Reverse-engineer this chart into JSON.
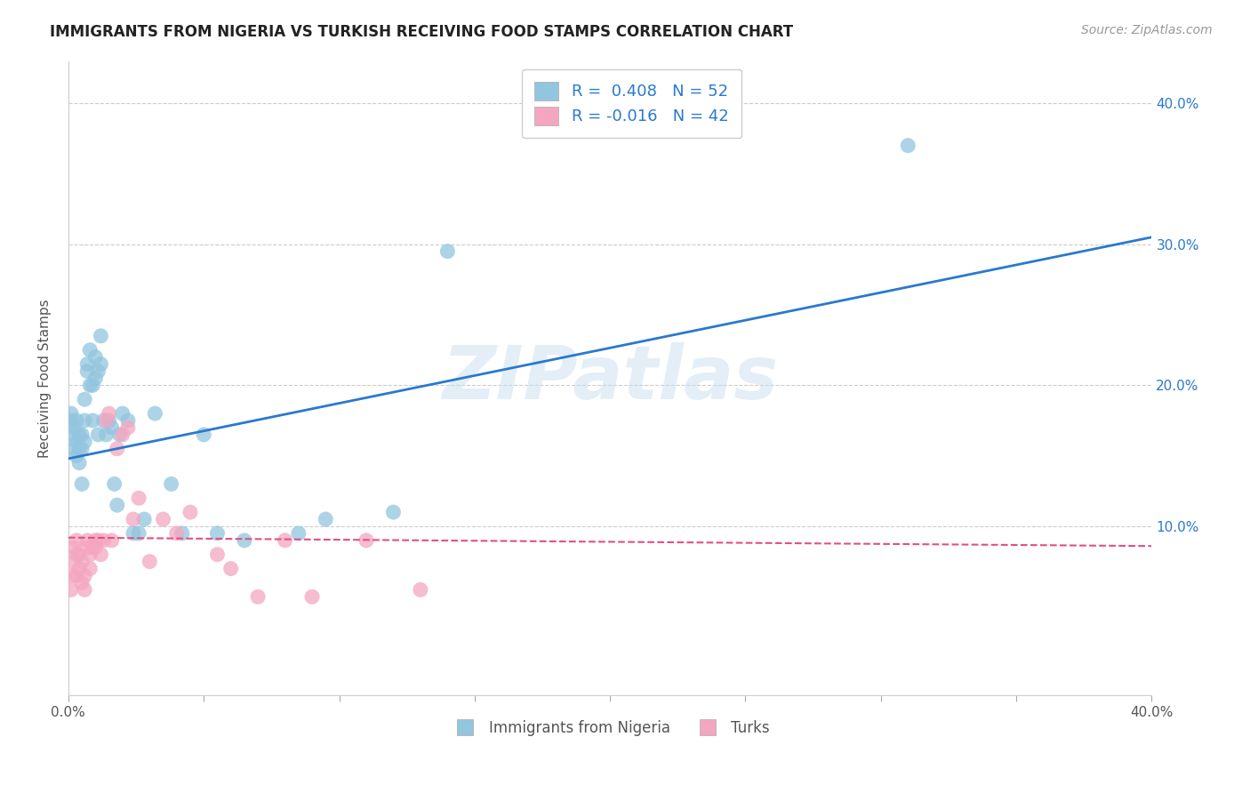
{
  "title": "IMMIGRANTS FROM NIGERIA VS TURKISH RECEIVING FOOD STAMPS CORRELATION CHART",
  "source": "Source: ZipAtlas.com",
  "ylabel": "Receiving Food Stamps",
  "xlim": [
    0.0,
    0.4
  ],
  "ylim": [
    -0.02,
    0.43
  ],
  "xticks": [
    0.0,
    0.05,
    0.1,
    0.15,
    0.2,
    0.25,
    0.3,
    0.35,
    0.4
  ],
  "yticks": [
    0.0,
    0.1,
    0.2,
    0.3,
    0.4
  ],
  "watermark": "ZIPatlas",
  "nigeria_color": "#92c5de",
  "turks_color": "#f4a6c0",
  "nigeria_line_color": "#2979d0",
  "turks_line_color": "#e05080",
  "legend1_R": "0.408",
  "legend1_N": "52",
  "legend2_R": "-0.016",
  "legend2_N": "42",
  "nigeria_scatter_x": [
    0.001,
    0.001,
    0.002,
    0.002,
    0.002,
    0.003,
    0.003,
    0.003,
    0.004,
    0.004,
    0.004,
    0.005,
    0.005,
    0.005,
    0.006,
    0.006,
    0.006,
    0.007,
    0.007,
    0.008,
    0.008,
    0.009,
    0.009,
    0.01,
    0.01,
    0.011,
    0.011,
    0.012,
    0.012,
    0.013,
    0.014,
    0.015,
    0.016,
    0.017,
    0.018,
    0.019,
    0.02,
    0.022,
    0.024,
    0.026,
    0.028,
    0.032,
    0.038,
    0.042,
    0.05,
    0.055,
    0.065,
    0.085,
    0.095,
    0.12,
    0.14,
    0.31
  ],
  "nigeria_scatter_y": [
    0.175,
    0.18,
    0.165,
    0.17,
    0.155,
    0.175,
    0.16,
    0.15,
    0.165,
    0.145,
    0.155,
    0.165,
    0.155,
    0.13,
    0.19,
    0.16,
    0.175,
    0.215,
    0.21,
    0.225,
    0.2,
    0.175,
    0.2,
    0.22,
    0.205,
    0.21,
    0.165,
    0.235,
    0.215,
    0.175,
    0.165,
    0.175,
    0.17,
    0.13,
    0.115,
    0.165,
    0.18,
    0.175,
    0.095,
    0.095,
    0.105,
    0.18,
    0.13,
    0.095,
    0.165,
    0.095,
    0.09,
    0.095,
    0.105,
    0.11,
    0.295,
    0.37
  ],
  "turks_scatter_x": [
    0.001,
    0.001,
    0.002,
    0.002,
    0.003,
    0.003,
    0.003,
    0.004,
    0.004,
    0.005,
    0.005,
    0.006,
    0.006,
    0.007,
    0.007,
    0.008,
    0.008,
    0.009,
    0.01,
    0.01,
    0.011,
    0.012,
    0.013,
    0.014,
    0.015,
    0.016,
    0.018,
    0.02,
    0.022,
    0.024,
    0.026,
    0.03,
    0.035,
    0.04,
    0.045,
    0.055,
    0.06,
    0.07,
    0.08,
    0.09,
    0.11,
    0.13
  ],
  "turks_scatter_y": [
    0.055,
    0.065,
    0.075,
    0.085,
    0.065,
    0.08,
    0.09,
    0.07,
    0.08,
    0.06,
    0.075,
    0.055,
    0.065,
    0.085,
    0.09,
    0.08,
    0.07,
    0.085,
    0.085,
    0.09,
    0.09,
    0.08,
    0.09,
    0.175,
    0.18,
    0.09,
    0.155,
    0.165,
    0.17,
    0.105,
    0.12,
    0.075,
    0.105,
    0.095,
    0.11,
    0.08,
    0.07,
    0.05,
    0.09,
    0.05,
    0.09,
    0.055
  ],
  "nigeria_line_x0": 0.0,
  "nigeria_line_y0": 0.148,
  "nigeria_line_x1": 0.4,
  "nigeria_line_y1": 0.305,
  "turks_line_x0": 0.0,
  "turks_line_y0": 0.092,
  "turks_line_x1": 0.4,
  "turks_line_y1": 0.086
}
